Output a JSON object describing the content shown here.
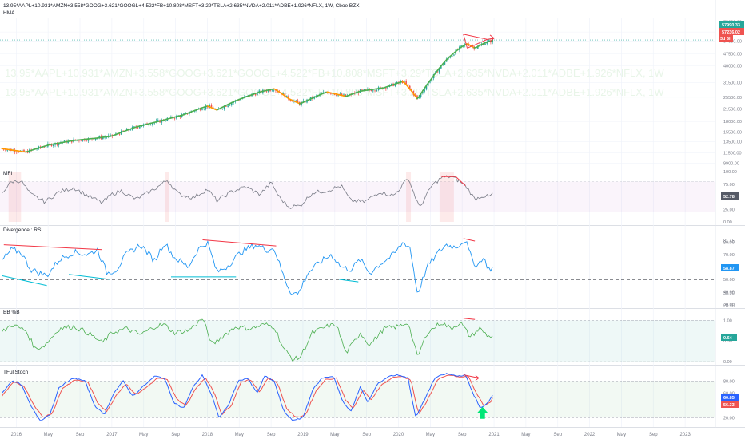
{
  "header": {
    "symbol_line": "13.95*AAPL+10.931*AMZN+3.558*GOOG+3.621*GOOGL+4.522*FB+10.808*MSFT+3.29*TSLA+2.635*NVDA+2.011*ADBE+1.926*NFLX, 1W, Cboe BZX",
    "indicator": "HMA"
  },
  "watermark": {
    "text": "13.95*AAPL+10.931*AMZN+3.558*GOOG+3.621*GOOGL+4.522*FB+10.808*MSFT+3.29*TSLA+2.635*NVDA+2.011*ADBE+1.926*NFLX, 1W"
  },
  "colors": {
    "up": "#26a69a",
    "down": "#ef5350",
    "hma_up": "#4caf50",
    "hma_down": "#ff9800",
    "mfi": "#787b86",
    "mfi_band": "#9c27b0",
    "rsi": "#2196f3",
    "bb": "#4caf50",
    "stoch_k": "#2962ff",
    "stoch_d": "#ef5350",
    "div_red": "#f23645",
    "div_blue": "#00bcd4",
    "arrow_green": "#00e676"
  },
  "x_axis": {
    "labels": [
      "2016",
      "May",
      "Sep",
      "2017",
      "May",
      "Sep",
      "2018",
      "May",
      "Sep",
      "2019",
      "May",
      "Sep",
      "2020",
      "May",
      "Sep",
      "2021",
      "May",
      "Sep",
      "2022",
      "May",
      "Sep",
      "2023"
    ],
    "range": [
      2015.83,
      2023.3
    ]
  },
  "chart_data": [
    {
      "type": "candlestick",
      "name": "price",
      "scale": "log",
      "yticks": [
        75000,
        65000,
        57000,
        47500,
        40000,
        31500,
        25500,
        21500,
        18000,
        15500,
        13500,
        11500,
        9900
      ],
      "price_labels": {
        "last": "57990.33",
        "prev": "57236.02",
        "timer": "3d 6h"
      },
      "keypoints": [
        [
          2015.85,
          12200
        ],
        [
          2016.1,
          11600
        ],
        [
          2016.35,
          12900
        ],
        [
          2016.6,
          13700
        ],
        [
          2016.85,
          14200
        ],
        [
          2017.0,
          14600
        ],
        [
          2017.25,
          16600
        ],
        [
          2017.5,
          18100
        ],
        [
          2017.75,
          19800
        ],
        [
          2018.0,
          22500
        ],
        [
          2018.1,
          21200
        ],
        [
          2018.3,
          24300
        ],
        [
          2018.55,
          27500
        ],
        [
          2018.7,
          28800
        ],
        [
          2018.85,
          25000
        ],
        [
          2018.97,
          23200
        ],
        [
          2019.25,
          27500
        ],
        [
          2019.45,
          25800
        ],
        [
          2019.6,
          27800
        ],
        [
          2019.85,
          29200
        ],
        [
          2020.05,
          32000
        ],
        [
          2020.2,
          24800
        ],
        [
          2020.35,
          33500
        ],
        [
          2020.5,
          43500
        ],
        [
          2020.65,
          52000
        ],
        [
          2020.72,
          55000
        ],
        [
          2020.8,
          51500
        ],
        [
          2020.9,
          55500
        ],
        [
          2021.0,
          58000
        ]
      ]
    },
    {
      "type": "line",
      "name": "MFI",
      "ylim": [
        0,
        100
      ],
      "yticks": [
        100,
        75,
        50,
        25,
        0
      ],
      "last_value": "52.78",
      "keypoints": [
        [
          2015.85,
          58
        ],
        [
          2015.95,
          80
        ],
        [
          2016.05,
          82
        ],
        [
          2016.15,
          55
        ],
        [
          2016.3,
          40
        ],
        [
          2016.45,
          60
        ],
        [
          2016.6,
          68
        ],
        [
          2016.75,
          52
        ],
        [
          2016.9,
          38
        ],
        [
          2017.0,
          55
        ],
        [
          2017.1,
          62
        ],
        [
          2017.25,
          45
        ],
        [
          2017.4,
          60
        ],
        [
          2017.5,
          72
        ],
        [
          2017.58,
          83
        ],
        [
          2017.7,
          55
        ],
        [
          2017.85,
          48
        ],
        [
          2018.0,
          65
        ],
        [
          2018.1,
          42
        ],
        [
          2018.25,
          60
        ],
        [
          2018.4,
          70
        ],
        [
          2018.55,
          55
        ],
        [
          2018.67,
          78
        ],
        [
          2018.75,
          50
        ],
        [
          2018.85,
          30
        ],
        [
          2018.97,
          32
        ],
        [
          2019.1,
          58
        ],
        [
          2019.25,
          62
        ],
        [
          2019.4,
          72
        ],
        [
          2019.5,
          42
        ],
        [
          2019.65,
          40
        ],
        [
          2019.8,
          60
        ],
        [
          2019.95,
          52
        ],
        [
          2020.05,
          75
        ],
        [
          2020.1,
          88
        ],
        [
          2020.22,
          28
        ],
        [
          2020.35,
          72
        ],
        [
          2020.45,
          88
        ],
        [
          2020.55,
          90
        ],
        [
          2020.65,
          80
        ],
        [
          2020.72,
          68
        ],
        [
          2020.8,
          45
        ],
        [
          2020.88,
          52
        ],
        [
          2020.95,
          50
        ],
        [
          2021.0,
          58
        ]
      ]
    },
    {
      "type": "line",
      "name": "Divergence : RSI",
      "ylim": [
        30,
        90
      ],
      "yticks": [
        80,
        70,
        60,
        50,
        40,
        30
      ],
      "labeled_ticks": [
        "81.45",
        "38.90",
        "28.90"
      ],
      "last_value": "58.87",
      "reference_line": 50,
      "keypoints": [
        [
          2015.85,
          65
        ],
        [
          2015.95,
          74
        ],
        [
          2016.05,
          72
        ],
        [
          2016.15,
          58
        ],
        [
          2016.25,
          55
        ],
        [
          2016.32,
          53
        ],
        [
          2016.45,
          66
        ],
        [
          2016.6,
          72
        ],
        [
          2016.75,
          70
        ],
        [
          2016.85,
          74
        ],
        [
          2016.95,
          55
        ],
        [
          2017.05,
          58
        ],
        [
          2017.15,
          70
        ],
        [
          2017.3,
          78
        ],
        [
          2017.45,
          65
        ],
        [
          2017.55,
          80
        ],
        [
          2017.65,
          68
        ],
        [
          2017.8,
          60
        ],
        [
          2017.9,
          74
        ],
        [
          2018.0,
          80
        ],
        [
          2018.1,
          56
        ],
        [
          2018.2,
          60
        ],
        [
          2018.35,
          72
        ],
        [
          2018.5,
          78
        ],
        [
          2018.62,
          74
        ],
        [
          2018.7,
          75
        ],
        [
          2018.8,
          52
        ],
        [
          2018.87,
          40
        ],
        [
          2018.95,
          38
        ],
        [
          2019.05,
          55
        ],
        [
          2019.18,
          64
        ],
        [
          2019.3,
          70
        ],
        [
          2019.4,
          60
        ],
        [
          2019.5,
          58
        ],
        [
          2019.6,
          66
        ],
        [
          2019.7,
          55
        ],
        [
          2019.8,
          62
        ],
        [
          2019.95,
          70
        ],
        [
          2020.05,
          80
        ],
        [
          2020.12,
          76
        ],
        [
          2020.2,
          38
        ],
        [
          2020.3,
          60
        ],
        [
          2020.42,
          72
        ],
        [
          2020.5,
          78
        ],
        [
          2020.6,
          76
        ],
        [
          2020.7,
          82
        ],
        [
          2020.75,
          70
        ],
        [
          2020.82,
          60
        ],
        [
          2020.88,
          68
        ],
        [
          2020.95,
          58
        ],
        [
          2021.0,
          60
        ]
      ]
    },
    {
      "type": "line",
      "name": "BB %B",
      "ylim": [
        0,
        1.2
      ],
      "yticks": [
        1.0,
        0.5,
        0.0
      ],
      "tick_labels": [
        "1.00",
        "0.50",
        "0.00"
      ],
      "last_value": "0.64",
      "keypoints": [
        [
          2015.85,
          0.7
        ],
        [
          2015.95,
          0.9
        ],
        [
          2016.1,
          0.75
        ],
        [
          2016.2,
          0.3
        ],
        [
          2016.3,
          0.4
        ],
        [
          2016.45,
          0.8
        ],
        [
          2016.6,
          0.85
        ],
        [
          2016.75,
          0.7
        ],
        [
          2016.9,
          0.45
        ],
        [
          2017.0,
          0.7
        ],
        [
          2017.15,
          0.8
        ],
        [
          2017.3,
          0.65
        ],
        [
          2017.45,
          0.85
        ],
        [
          2017.55,
          0.9
        ],
        [
          2017.65,
          0.7
        ],
        [
          2017.8,
          0.75
        ],
        [
          2017.95,
          1.05
        ],
        [
          2018.05,
          0.4
        ],
        [
          2018.15,
          0.6
        ],
        [
          2018.3,
          0.85
        ],
        [
          2018.45,
          0.8
        ],
        [
          2018.6,
          0.9
        ],
        [
          2018.7,
          0.85
        ],
        [
          2018.8,
          0.3
        ],
        [
          2018.9,
          0.05
        ],
        [
          2018.97,
          0.1
        ],
        [
          2019.1,
          0.7
        ],
        [
          2019.25,
          0.85
        ],
        [
          2019.35,
          0.9
        ],
        [
          2019.45,
          0.2
        ],
        [
          2019.6,
          0.7
        ],
        [
          2019.7,
          0.4
        ],
        [
          2019.85,
          0.8
        ],
        [
          2020.0,
          0.85
        ],
        [
          2020.1,
          0.95
        ],
        [
          2020.2,
          0.1
        ],
        [
          2020.3,
          0.7
        ],
        [
          2020.45,
          0.95
        ],
        [
          2020.55,
          0.8
        ],
        [
          2020.65,
          0.95
        ],
        [
          2020.75,
          0.6
        ],
        [
          2020.85,
          0.8
        ],
        [
          2020.95,
          0.6
        ],
        [
          2021.0,
          0.64
        ]
      ]
    },
    {
      "type": "line",
      "name": "TFullStoch",
      "ylim": [
        10,
        100
      ],
      "yticks": [
        80,
        60,
        40,
        20
      ],
      "tick_labels": [
        "80.00",
        "60.00",
        "40.00",
        "20.00"
      ],
      "last_values": {
        "k": "60.85",
        "d": "56.33"
      },
      "k_keypoints": [
        [
          2015.85,
          60
        ],
        [
          2015.95,
          80
        ],
        [
          2016.05,
          75
        ],
        [
          2016.15,
          40
        ],
        [
          2016.25,
          15
        ],
        [
          2016.35,
          25
        ],
        [
          2016.45,
          70
        ],
        [
          2016.6,
          85
        ],
        [
          2016.72,
          80
        ],
        [
          2016.82,
          40
        ],
        [
          2016.92,
          25
        ],
        [
          2017.02,
          60
        ],
        [
          2017.12,
          80
        ],
        [
          2017.22,
          55
        ],
        [
          2017.32,
          70
        ],
        [
          2017.45,
          88
        ],
        [
          2017.55,
          85
        ],
        [
          2017.65,
          45
        ],
        [
          2017.75,
          35
        ],
        [
          2017.85,
          70
        ],
        [
          2017.95,
          90
        ],
        [
          2018.05,
          55
        ],
        [
          2018.12,
          20
        ],
        [
          2018.22,
          40
        ],
        [
          2018.32,
          80
        ],
        [
          2018.42,
          85
        ],
        [
          2018.52,
          60
        ],
        [
          2018.6,
          88
        ],
        [
          2018.7,
          80
        ],
        [
          2018.8,
          30
        ],
        [
          2018.9,
          15
        ],
        [
          2019.0,
          20
        ],
        [
          2019.1,
          65
        ],
        [
          2019.2,
          85
        ],
        [
          2019.32,
          88
        ],
        [
          2019.42,
          45
        ],
        [
          2019.5,
          30
        ],
        [
          2019.6,
          70
        ],
        [
          2019.68,
          45
        ],
        [
          2019.78,
          75
        ],
        [
          2019.9,
          88
        ],
        [
          2020.0,
          90
        ],
        [
          2020.1,
          85
        ],
        [
          2020.18,
          20
        ],
        [
          2020.26,
          45
        ],
        [
          2020.38,
          85
        ],
        [
          2020.5,
          92
        ],
        [
          2020.62,
          88
        ],
        [
          2020.7,
          90
        ],
        [
          2020.78,
          60
        ],
        [
          2020.86,
          35
        ],
        [
          2020.94,
          45
        ],
        [
          2021.0,
          60
        ]
      ],
      "d_keypoints": [
        [
          2015.85,
          55
        ],
        [
          2015.97,
          78
        ],
        [
          2016.08,
          72
        ],
        [
          2016.18,
          42
        ],
        [
          2016.28,
          20
        ],
        [
          2016.38,
          28
        ],
        [
          2016.48,
          68
        ],
        [
          2016.62,
          82
        ],
        [
          2016.75,
          78
        ],
        [
          2016.85,
          45
        ],
        [
          2016.95,
          30
        ],
        [
          2017.05,
          58
        ],
        [
          2017.15,
          76
        ],
        [
          2017.25,
          58
        ],
        [
          2017.35,
          68
        ],
        [
          2017.48,
          85
        ],
        [
          2017.58,
          82
        ],
        [
          2017.68,
          50
        ],
        [
          2017.78,
          40
        ],
        [
          2017.88,
          68
        ],
        [
          2017.98,
          86
        ],
        [
          2018.08,
          58
        ],
        [
          2018.15,
          25
        ],
        [
          2018.25,
          40
        ],
        [
          2018.35,
          78
        ],
        [
          2018.45,
          82
        ],
        [
          2018.55,
          62
        ],
        [
          2018.63,
          85
        ],
        [
          2018.73,
          78
        ],
        [
          2018.83,
          35
        ],
        [
          2018.93,
          20
        ],
        [
          2019.03,
          25
        ],
        [
          2019.13,
          62
        ],
        [
          2019.23,
          82
        ],
        [
          2019.35,
          85
        ],
        [
          2019.45,
          48
        ],
        [
          2019.53,
          35
        ],
        [
          2019.63,
          66
        ],
        [
          2019.71,
          48
        ],
        [
          2019.81,
          72
        ],
        [
          2019.93,
          85
        ],
        [
          2020.03,
          88
        ],
        [
          2020.13,
          82
        ],
        [
          2020.21,
          25
        ],
        [
          2020.29,
          45
        ],
        [
          2020.41,
          82
        ],
        [
          2020.53,
          90
        ],
        [
          2020.65,
          86
        ],
        [
          2020.73,
          88
        ],
        [
          2020.81,
          62
        ],
        [
          2020.89,
          40
        ],
        [
          2020.96,
          45
        ],
        [
          2021.0,
          56
        ]
      ]
    }
  ]
}
